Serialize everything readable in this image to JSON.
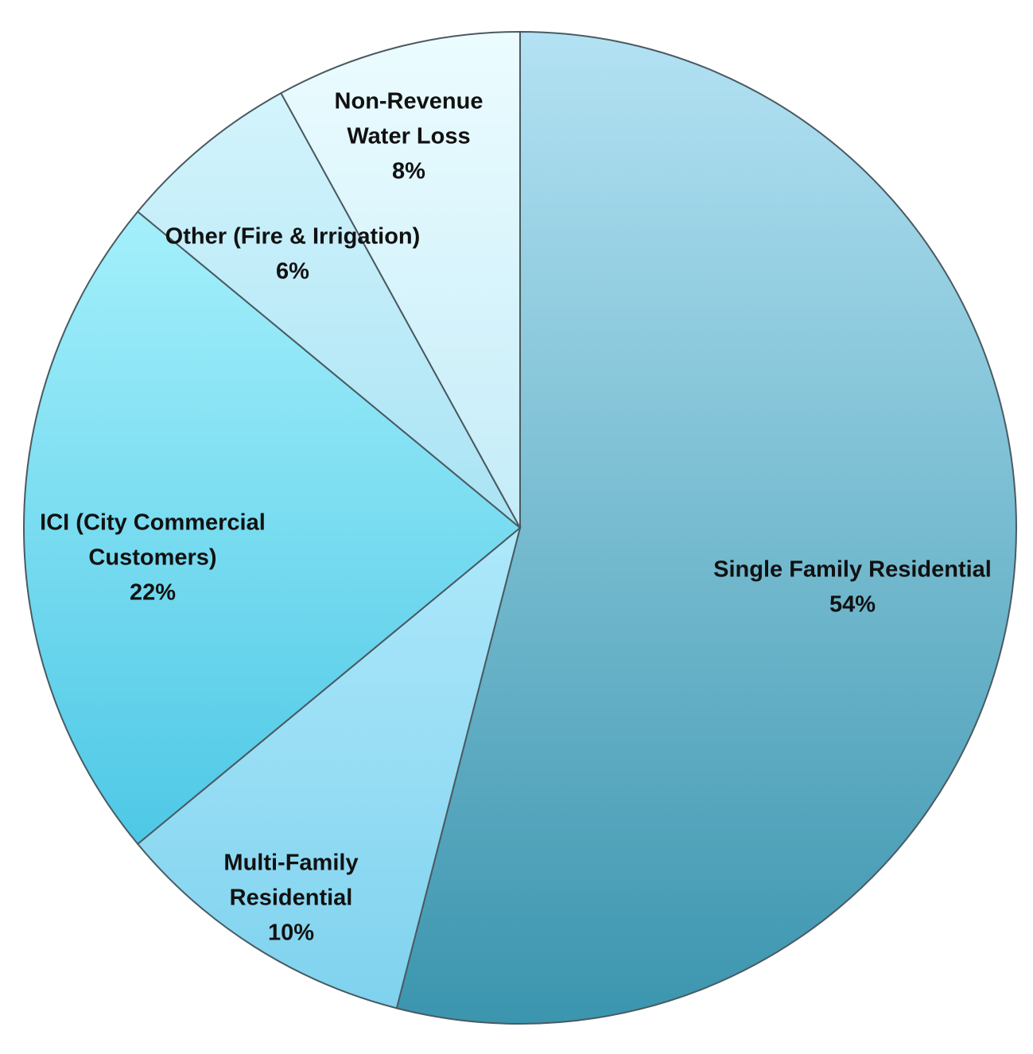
{
  "chart_data": {
    "type": "pie",
    "start_angle_deg": 0,
    "direction": "clockwise",
    "slices": [
      {
        "name": "Single Family Residential",
        "value": 54,
        "label_lines": [
          "Single Family Residential",
          "54%"
        ],
        "colors": [
          "#b3e2f3",
          "#3b95ae"
        ]
      },
      {
        "name": "Multi-Family Residential",
        "value": 10,
        "label_lines": [
          "Multi-Family",
          "Residential",
          "10%"
        ],
        "colors": [
          "#aee8fb",
          "#7fd2ee"
        ]
      },
      {
        "name": "ICI (City Commercial Customers)",
        "value": 22,
        "label_lines": [
          "ICI (City Commercial",
          "Customers)",
          "22%"
        ],
        "colors": [
          "#a4f0fb",
          "#4ec8e6"
        ]
      },
      {
        "name": "Other (Fire & Irrigation)",
        "value": 6,
        "label_lines": [
          "Other (Fire & Irrigation)",
          "6%"
        ],
        "colors": [
          "#d3f4fc",
          "#a9e3f4"
        ]
      },
      {
        "name": "Non-Revenue Water Loss",
        "value": 8,
        "label_lines": [
          "Non-Revenue",
          "Water Loss",
          "8%"
        ],
        "colors": [
          "#ecfcff",
          "#c4ecf8"
        ]
      }
    ]
  }
}
